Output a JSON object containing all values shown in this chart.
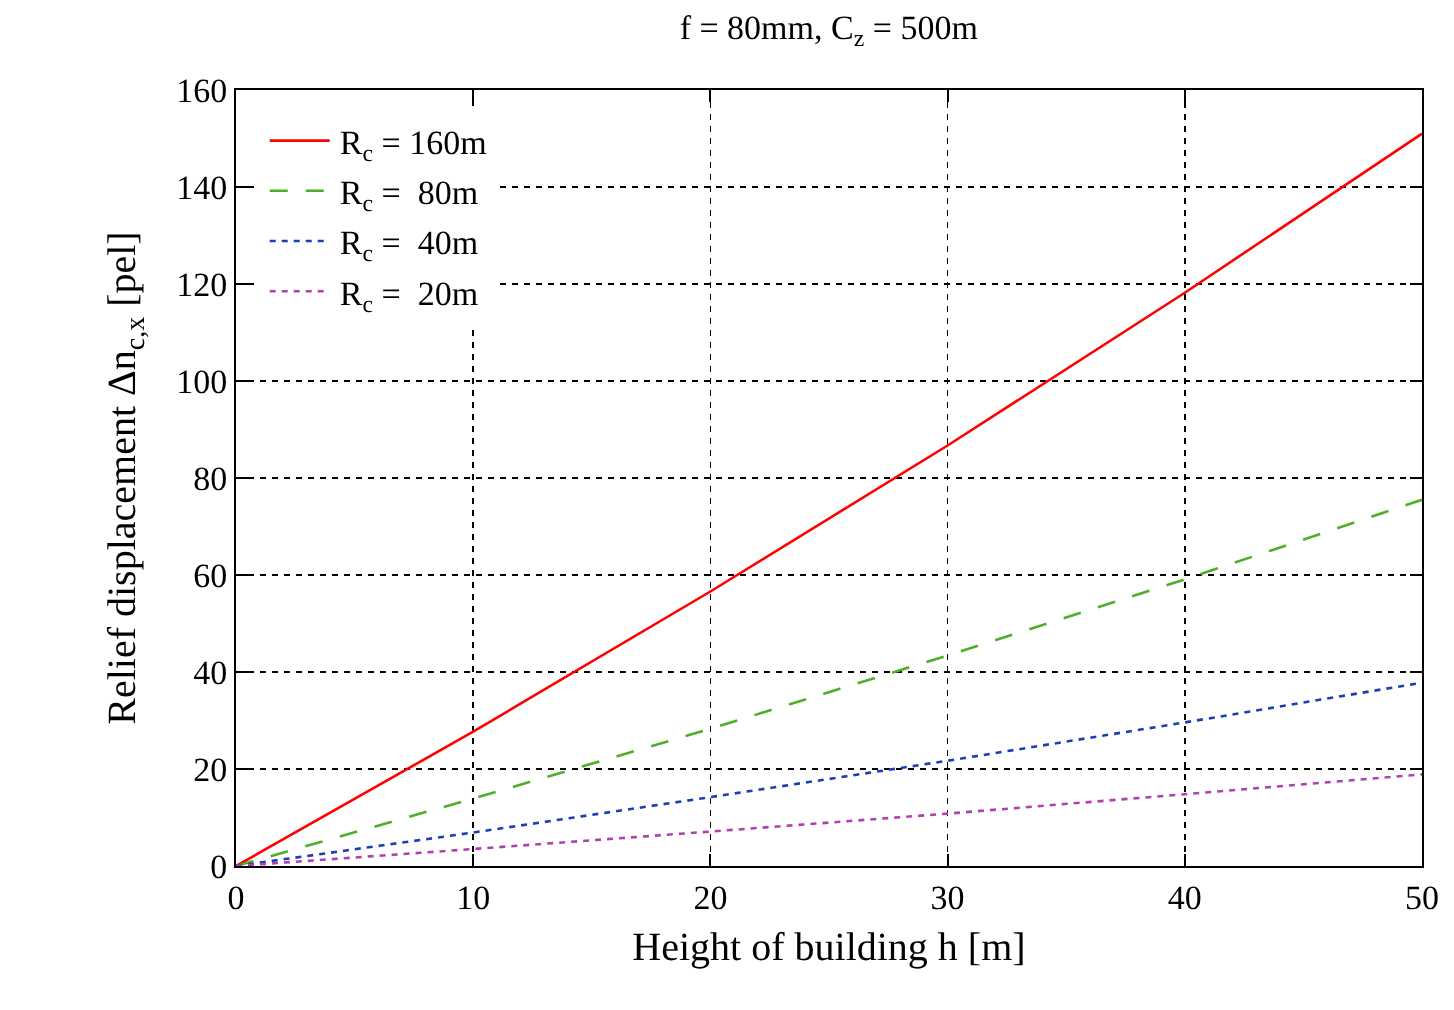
{
  "chart_data": {
    "type": "line",
    "title": "f = 80mm, C$_{z}$ = 500m",
    "xlabel": "Height of building h [m]",
    "ylabel": "Relief displacement Δn$_{c,x}$ [pel]",
    "x": [
      0,
      10,
      20,
      30,
      40,
      50
    ],
    "series": [
      {
        "name": "R$_{c}$ = 160m",
        "color": "#ff0000",
        "line_style": "solid",
        "values": [
          0,
          27.7,
          56.6,
          86.7,
          118.2,
          151
        ]
      },
      {
        "name": "R$_{c}$ =  80m",
        "color": "#4daf2a",
        "line_style": "dashed",
        "values": [
          0,
          13.9,
          28.3,
          43.4,
          59.1,
          75.5
        ]
      },
      {
        "name": "R$_{c}$ =  40m",
        "color": "#1a3fb0",
        "line_style": "dotted",
        "values": [
          0,
          6.9,
          14.2,
          21.7,
          29.6,
          37.8
        ]
      },
      {
        "name": "R$_{c}$ =  20m",
        "color": "#b040b0",
        "line_style": "dotted",
        "values": [
          0,
          3.5,
          7.1,
          10.8,
          14.8,
          18.9
        ]
      }
    ],
    "xlim": [
      0,
      50
    ],
    "xticks": [
      0,
      10,
      20,
      30,
      40,
      50
    ],
    "ylim": [
      0,
      160
    ],
    "yticks": [
      0,
      20,
      40,
      60,
      80,
      100,
      120,
      140,
      160
    ],
    "grid": true,
    "legend": "top left",
    "marker": "none"
  }
}
